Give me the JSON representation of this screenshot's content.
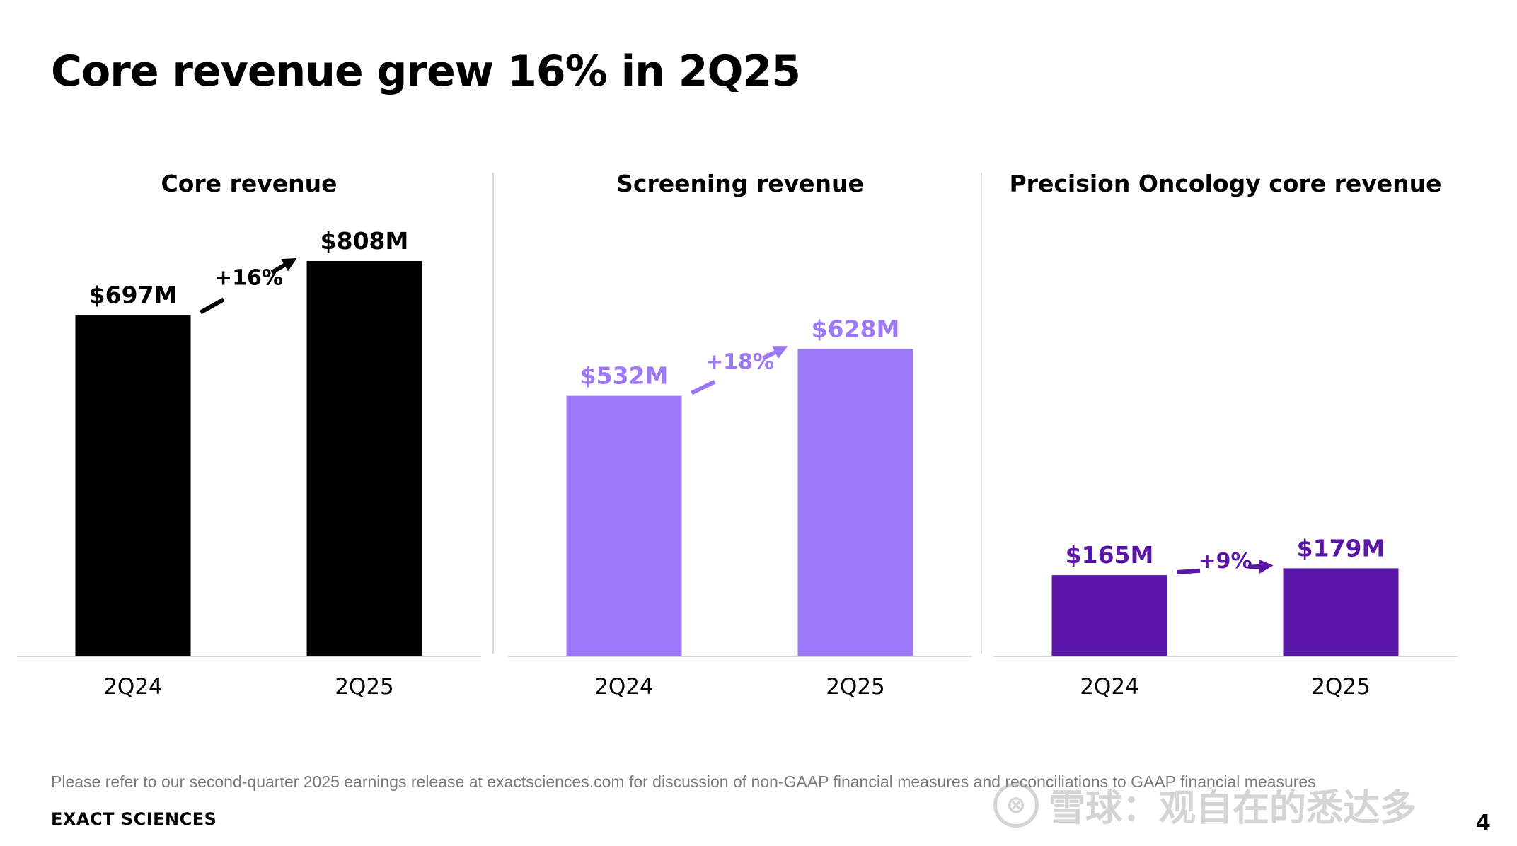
{
  "title": "Core revenue grew 16% in 2Q25",
  "footnote": "Please refer to our second-quarter 2025 earnings release at exactsciences.com for discussion of non-GAAP financial measures and reconciliations to GAAP financial measures",
  "brand": "EXACT SCIENCES",
  "page_number": "4",
  "watermark": {
    "text": "雪球：观自在的悉达多"
  },
  "chart_data": [
    {
      "type": "bar",
      "title": "Core revenue",
      "categories": [
        "2Q24",
        "2Q25"
      ],
      "values": [
        697,
        808
      ],
      "value_labels": [
        "$697M",
        "$808M"
      ],
      "growth_label": "+16%",
      "color": "#000000",
      "ylim": [
        0,
        808
      ],
      "grid": false
    },
    {
      "type": "bar",
      "title": "Screening revenue",
      "categories": [
        "2Q24",
        "2Q25"
      ],
      "values": [
        532,
        628
      ],
      "value_labels": [
        "$532M",
        "$628M"
      ],
      "growth_label": "+18%",
      "color": "#9d78f8",
      "ylim": [
        0,
        808
      ],
      "grid": false
    },
    {
      "type": "bar",
      "title": "Precision Oncology core revenue",
      "categories": [
        "2Q24",
        "2Q25"
      ],
      "values": [
        165,
        179
      ],
      "value_labels": [
        "$165M",
        "$179M"
      ],
      "growth_label": "+9%",
      "color": "#5a16a6",
      "ylim": [
        0,
        808
      ],
      "grid": false
    }
  ]
}
